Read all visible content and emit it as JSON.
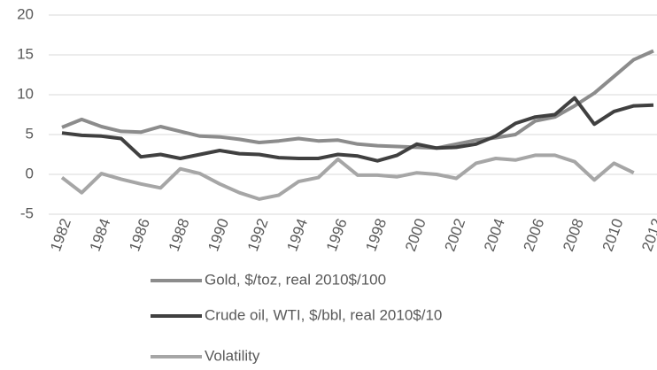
{
  "chart_data": {
    "type": "line",
    "x": [
      1982,
      1983,
      1984,
      1985,
      1986,
      1987,
      1988,
      1989,
      1990,
      1991,
      1992,
      1993,
      1994,
      1995,
      1996,
      1997,
      1998,
      1999,
      2000,
      2001,
      2002,
      2003,
      2004,
      2005,
      2006,
      2007,
      2008,
      2009,
      2010,
      2011,
      2012
    ],
    "series": [
      {
        "name": "Gold, $/toz, real 2010$/100",
        "color": "#8c8c8c",
        "values": [
          5.9,
          6.9,
          6.0,
          5.4,
          5.3,
          6.0,
          5.4,
          4.8,
          4.7,
          4.4,
          4.0,
          4.2,
          4.5,
          4.2,
          4.3,
          3.8,
          3.6,
          3.5,
          3.4,
          3.3,
          3.8,
          4.3,
          4.6,
          5.0,
          6.7,
          7.2,
          8.6,
          10.2,
          12.3,
          14.4,
          15.5
        ]
      },
      {
        "name": "Crude oil, WTI, $/bbl, real 2010$/10",
        "color": "#404040",
        "values": [
          5.2,
          4.9,
          4.8,
          4.5,
          2.2,
          2.5,
          2.0,
          2.5,
          3.0,
          2.6,
          2.5,
          2.1,
          2.0,
          2.0,
          2.5,
          2.3,
          1.7,
          2.4,
          3.8,
          3.3,
          3.4,
          3.8,
          4.8,
          6.4,
          7.2,
          7.5,
          9.6,
          6.3,
          7.9,
          8.6,
          8.7
        ]
      },
      {
        "name": "Volatility",
        "color": "#a6a6a6",
        "values": [
          -0.4,
          -2.3,
          0.1,
          -0.6,
          -1.2,
          -1.7,
          0.7,
          0.1,
          -1.2,
          -2.3,
          -3.1,
          -2.6,
          -0.9,
          -0.4,
          1.9,
          -0.1,
          -0.1,
          -0.3,
          0.2,
          0.0,
          -0.5,
          1.4,
          2.0,
          1.8,
          2.4,
          2.4,
          1.6,
          -0.7,
          1.4,
          0.2,
          null
        ]
      }
    ],
    "xlim": [
      1982,
      2012
    ],
    "xticks": [
      1982,
      1984,
      1986,
      1988,
      1990,
      1992,
      1994,
      1996,
      1998,
      2000,
      2002,
      2004,
      2006,
      2008,
      2010,
      2012
    ],
    "ylim": [
      -5,
      20
    ],
    "yticks": [
      -5,
      0,
      5,
      10,
      15,
      20
    ],
    "grid": true,
    "legend": "bottom"
  }
}
